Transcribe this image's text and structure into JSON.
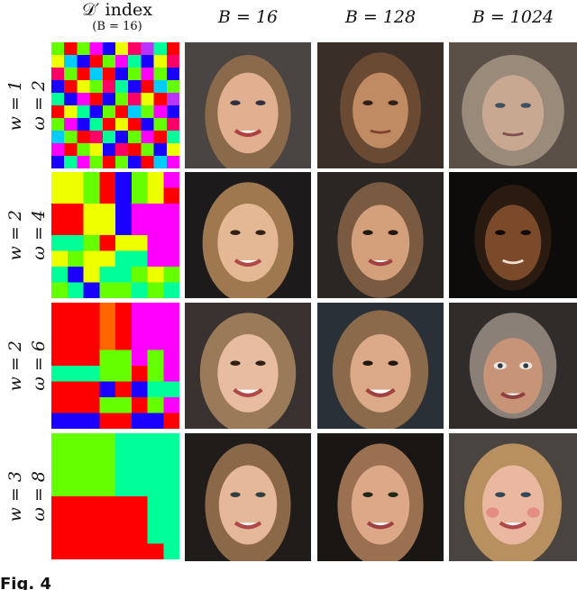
{
  "headers": {
    "index_title": "𝒟′ index",
    "index_sub": "(B = 16)",
    "columns": [
      "B = 16",
      "B = 128",
      "B = 1024"
    ]
  },
  "rows": [
    {
      "omega": "ω = 2",
      "w": "w = 1"
    },
    {
      "omega": "ω = 4",
      "w": "w = 2"
    },
    {
      "omega": "ω = 6",
      "w": "w = 2"
    },
    {
      "omega": "ω = 8",
      "w": "w = 3"
    }
  ],
  "colors": {
    "red": "#ff0000",
    "blue": "#1a00ff",
    "green": "#66ff00",
    "yellow": "#eeff00",
    "magenta": "#ff00ff",
    "pink": "#ff0066",
    "cyan": "#00ffcc",
    "teal": "#00ff99",
    "purple": "#bb33ff",
    "orange": "#ff6600",
    "sky": "#00ccff",
    "lime": "#33ff33",
    "violet": "#9933ff"
  },
  "caption_fragment": "Fig. 4"
}
